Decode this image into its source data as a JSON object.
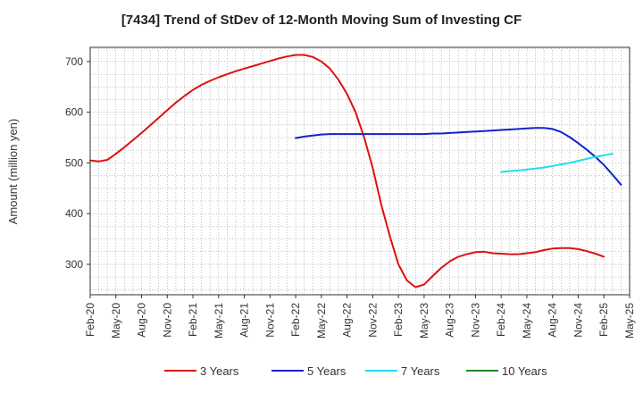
{
  "chart_data": {
    "type": "line",
    "title": "[7434]  Trend of StDev of 12-Month Moving Sum of Investing CF",
    "ylabel": "Amount (million yen)",
    "xlabel": "",
    "ylim": [
      240,
      728
    ],
    "yticks": [
      300,
      400,
      500,
      600,
      700
    ],
    "grid": true,
    "legend_position": "bottom",
    "x_tick_labels": [
      "Feb-20",
      "May-20",
      "Aug-20",
      "Nov-20",
      "Feb-21",
      "May-21",
      "Aug-21",
      "Nov-21",
      "Feb-22",
      "May-22",
      "Aug-22",
      "Nov-22",
      "Feb-23",
      "May-23",
      "Aug-23",
      "Nov-23",
      "Feb-24",
      "May-24",
      "Aug-24",
      "Nov-24",
      "Feb-25",
      "May-25"
    ],
    "x_start": "Feb-20",
    "x_end": "May-25",
    "series": [
      {
        "name": "3 Years",
        "color": "#dd1111",
        "points": [
          [
            "Feb-20",
            505
          ],
          [
            "Mar-20",
            503
          ],
          [
            "Apr-20",
            506
          ],
          [
            "May-20",
            518
          ],
          [
            "Jun-20",
            531
          ],
          [
            "Jul-20",
            545
          ],
          [
            "Aug-20",
            559
          ],
          [
            "Sep-20",
            574
          ],
          [
            "Oct-20",
            589
          ],
          [
            "Nov-20",
            604
          ],
          [
            "Dec-20",
            619
          ],
          [
            "Jan-21",
            632
          ],
          [
            "Feb-21",
            644
          ],
          [
            "Mar-21",
            654
          ],
          [
            "Apr-21",
            662
          ],
          [
            "May-21",
            669
          ],
          [
            "Jun-21",
            675
          ],
          [
            "Jul-21",
            681
          ],
          [
            "Aug-21",
            686
          ],
          [
            "Sep-21",
            691
          ],
          [
            "Oct-21",
            696
          ],
          [
            "Nov-21",
            701
          ],
          [
            "Dec-21",
            706
          ],
          [
            "Jan-22",
            710
          ],
          [
            "Feb-22",
            713
          ],
          [
            "Mar-22",
            713
          ],
          [
            "Apr-22",
            709
          ],
          [
            "May-22",
            700
          ],
          [
            "Jun-22",
            686
          ],
          [
            "Jul-22",
            664
          ],
          [
            "Aug-22",
            636
          ],
          [
            "Sep-22",
            600
          ],
          [
            "Oct-22",
            550
          ],
          [
            "Nov-22",
            490
          ],
          [
            "Dec-22",
            417
          ],
          [
            "Jan-23",
            355
          ],
          [
            "Feb-23",
            300
          ],
          [
            "Mar-23",
            268
          ],
          [
            "Apr-23",
            255
          ],
          [
            "May-23",
            260
          ],
          [
            "Jun-23",
            277
          ],
          [
            "Jul-23",
            293
          ],
          [
            "Aug-23",
            306
          ],
          [
            "Sep-23",
            315
          ],
          [
            "Oct-23",
            320
          ],
          [
            "Nov-23",
            324
          ],
          [
            "Dec-23",
            325
          ],
          [
            "Jan-24",
            322
          ],
          [
            "Feb-24",
            321
          ],
          [
            "Mar-24",
            320
          ],
          [
            "Apr-24",
            320
          ],
          [
            "May-24",
            322
          ],
          [
            "Jun-24",
            324
          ],
          [
            "Jul-24",
            328
          ],
          [
            "Aug-24",
            331
          ],
          [
            "Sep-24",
            332
          ],
          [
            "Oct-24",
            332
          ],
          [
            "Nov-24",
            330
          ],
          [
            "Dec-24",
            326
          ],
          [
            "Jan-25",
            321
          ],
          [
            "Feb-25",
            315
          ]
        ]
      },
      {
        "name": "5 Years",
        "color": "#1122cc",
        "points": [
          [
            "Feb-22",
            549
          ],
          [
            "Mar-22",
            552
          ],
          [
            "Apr-22",
            554
          ],
          [
            "May-22",
            556
          ],
          [
            "Jun-22",
            557
          ],
          [
            "Jul-22",
            557
          ],
          [
            "Aug-22",
            557
          ],
          [
            "Sep-22",
            557
          ],
          [
            "Oct-22",
            557
          ],
          [
            "Nov-22",
            557
          ],
          [
            "Dec-22",
            557
          ],
          [
            "Jan-23",
            557
          ],
          [
            "Feb-23",
            557
          ],
          [
            "Mar-23",
            557
          ],
          [
            "Apr-23",
            557
          ],
          [
            "May-23",
            557
          ],
          [
            "Jun-23",
            558
          ],
          [
            "Jul-23",
            558
          ],
          [
            "Aug-23",
            559
          ],
          [
            "Sep-23",
            560
          ],
          [
            "Oct-23",
            561
          ],
          [
            "Nov-23",
            562
          ],
          [
            "Dec-23",
            563
          ],
          [
            "Jan-24",
            564
          ],
          [
            "Feb-24",
            565
          ],
          [
            "Mar-24",
            566
          ],
          [
            "Apr-24",
            567
          ],
          [
            "May-24",
            568
          ],
          [
            "Jun-24",
            569
          ],
          [
            "Jul-24",
            569
          ],
          [
            "Aug-24",
            567
          ],
          [
            "Sep-24",
            561
          ],
          [
            "Oct-24",
            551
          ],
          [
            "Nov-24",
            539
          ],
          [
            "Dec-24",
            526
          ],
          [
            "Jan-25",
            512
          ],
          [
            "Feb-25",
            496
          ],
          [
            "Mar-25",
            477
          ],
          [
            "Apr-25",
            457
          ]
        ]
      },
      {
        "name": "7 Years",
        "color": "#22ddee",
        "points": [
          [
            "Feb-24",
            482
          ],
          [
            "Mar-24",
            484
          ],
          [
            "Apr-24",
            485
          ],
          [
            "May-24",
            487
          ],
          [
            "Jun-24",
            489
          ],
          [
            "Jul-24",
            491
          ],
          [
            "Aug-24",
            494
          ],
          [
            "Sep-24",
            497
          ],
          [
            "Oct-24",
            500
          ],
          [
            "Nov-24",
            504
          ],
          [
            "Dec-24",
            508
          ],
          [
            "Jan-25",
            512
          ],
          [
            "Feb-25",
            515
          ],
          [
            "Mar-25",
            518
          ]
        ]
      },
      {
        "name": "10 Years",
        "color": "#228822",
        "points": []
      }
    ]
  }
}
